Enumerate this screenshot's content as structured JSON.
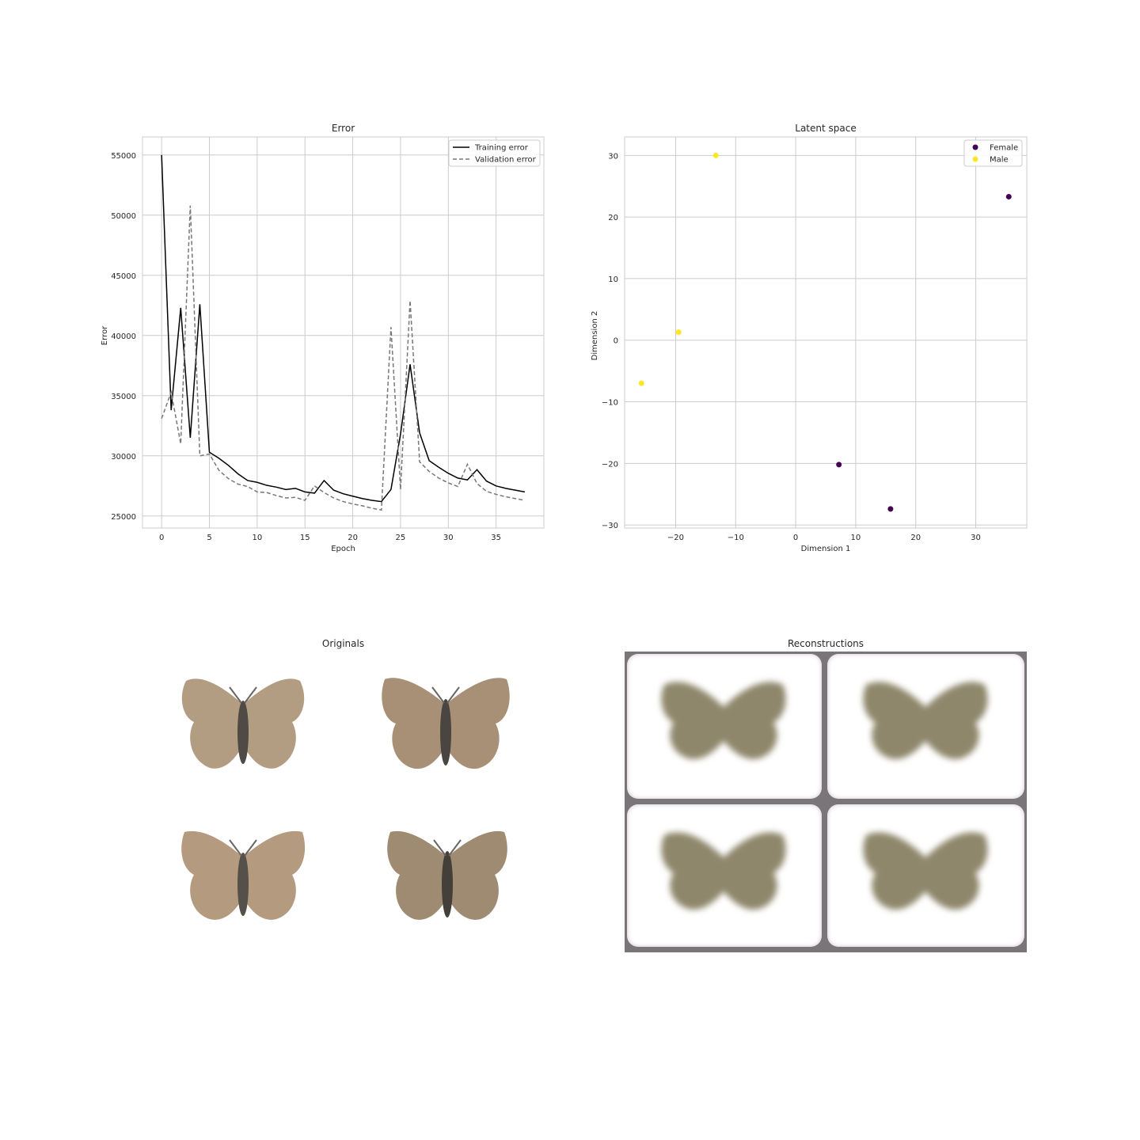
{
  "chart_data": [
    {
      "type": "line",
      "title": "Error",
      "xlabel": "Epoch",
      "ylabel": "Error",
      "xlim": [
        -2,
        40
      ],
      "ylim": [
        24000,
        56500
      ],
      "xticks": [
        0,
        5,
        10,
        15,
        20,
        25,
        30,
        35
      ],
      "yticks": [
        25000,
        30000,
        35000,
        40000,
        45000,
        50000,
        55000
      ],
      "grid": true,
      "legend_position": "top-right",
      "x": [
        0,
        1,
        2,
        3,
        4,
        5,
        6,
        7,
        8,
        9,
        10,
        11,
        12,
        13,
        14,
        15,
        16,
        17,
        18,
        19,
        20,
        21,
        22,
        23,
        24,
        25,
        26,
        27,
        28,
        29,
        30,
        31,
        32,
        33,
        34,
        35,
        36,
        37,
        38
      ],
      "series": [
        {
          "name": "Training error",
          "style": "solid",
          "color": "#000000",
          "values": [
            55000,
            33800,
            42300,
            31500,
            42600,
            30300,
            29800,
            29200,
            28500,
            27950,
            27800,
            27550,
            27400,
            27200,
            27300,
            27000,
            26900,
            27950,
            27150,
            26850,
            26650,
            26450,
            26300,
            26200,
            27200,
            31800,
            37600,
            31900,
            29600,
            29050,
            28550,
            28150,
            28000,
            28850,
            27900,
            27500,
            27300,
            27150,
            27000
          ]
        },
        {
          "name": "Validation error",
          "style": "dashed",
          "color": "#777777",
          "values": [
            33100,
            35300,
            31000,
            50800,
            30000,
            30150,
            28800,
            28100,
            27650,
            27450,
            27000,
            26950,
            26700,
            26500,
            26550,
            26300,
            27500,
            26950,
            26500,
            26200,
            26000,
            25850,
            25650,
            25500,
            40700,
            27200,
            42900,
            29500,
            28700,
            28150,
            27750,
            27450,
            29300,
            27700,
            27050,
            26800,
            26600,
            26450,
            26300
          ]
        }
      ]
    },
    {
      "type": "scatter",
      "title": "Latent space",
      "xlabel": "Dimension 1",
      "ylabel": "Dimension 2",
      "xlim": [
        -28.5,
        38.5
      ],
      "ylim": [
        -30.5,
        33
      ],
      "xticks": [
        -20,
        -10,
        0,
        10,
        20,
        30
      ],
      "yticks": [
        -30,
        -20,
        -10,
        0,
        10,
        20,
        30
      ],
      "xtick_labels": [
        "−20",
        "−10",
        "0",
        "10",
        "20",
        "30"
      ],
      "ytick_labels": [
        "−30",
        "−20",
        "−10",
        "0",
        "10",
        "20",
        "30"
      ],
      "grid": true,
      "legend_position": "top-right",
      "series": [
        {
          "name": "Female",
          "color": "#440154",
          "points": [
            [
              35.5,
              23.3
            ],
            [
              7.2,
              -20.2
            ],
            [
              15.8,
              -27.4
            ]
          ]
        },
        {
          "name": "Male",
          "color": "#fde725",
          "points": [
            [
              -13.3,
              30.0
            ],
            [
              -19.5,
              1.3
            ],
            [
              -25.7,
              -7.0
            ]
          ]
        }
      ]
    }
  ],
  "images": {
    "originals_title": "Originals",
    "reconstructions_title": "Reconstructions"
  }
}
